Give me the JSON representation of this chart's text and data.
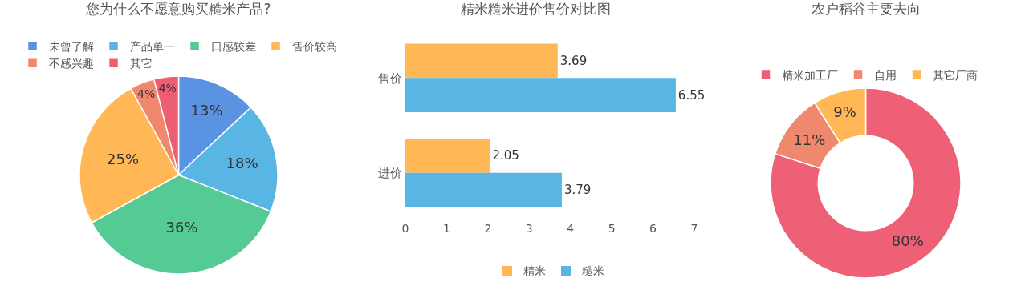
{
  "chart_data": [
    {
      "type": "pie",
      "title": "您为什么不愿意购买糙米产品?",
      "legend": "top",
      "categories": [
        "未曾了解",
        "产品单一",
        "口感较差",
        "售价较高",
        "不感兴趣",
        "其它"
      ],
      "values": [
        13,
        18,
        36,
        25,
        4,
        4
      ],
      "value_labels": [
        "13%",
        "18%",
        "36%",
        "25%",
        "4%",
        "4%"
      ],
      "colors": [
        "#5b93e3",
        "#58b5e4",
        "#54ca95",
        "#ffb855",
        "#f0886d",
        "#ee5e73"
      ]
    },
    {
      "type": "bar",
      "title": "精米糙米进价售价对比图",
      "orientation": "horizontal",
      "legend": "bottom",
      "data_labels": true,
      "grid": false,
      "categories": [
        "售价",
        "进价"
      ],
      "xlim": [
        0,
        7
      ],
      "xticks": [
        0,
        1,
        2,
        3,
        4,
        5,
        6,
        7
      ],
      "series": [
        {
          "name": "精米",
          "color": "#ffb855",
          "values": [
            3.69,
            2.05
          ]
        },
        {
          "name": "糙米",
          "color": "#58b5e4",
          "values": [
            6.55,
            3.79
          ]
        }
      ]
    },
    {
      "type": "donut",
      "title": "农户稻谷主要去向",
      "legend": "top",
      "categories": [
        "精米加工厂",
        "自用",
        "其它厂商"
      ],
      "values": [
        80,
        11,
        9
      ],
      "value_labels": [
        "80%",
        "11%",
        "9%"
      ],
      "colors": [
        "#ee6075",
        "#f0886d",
        "#ffb855"
      ]
    }
  ]
}
